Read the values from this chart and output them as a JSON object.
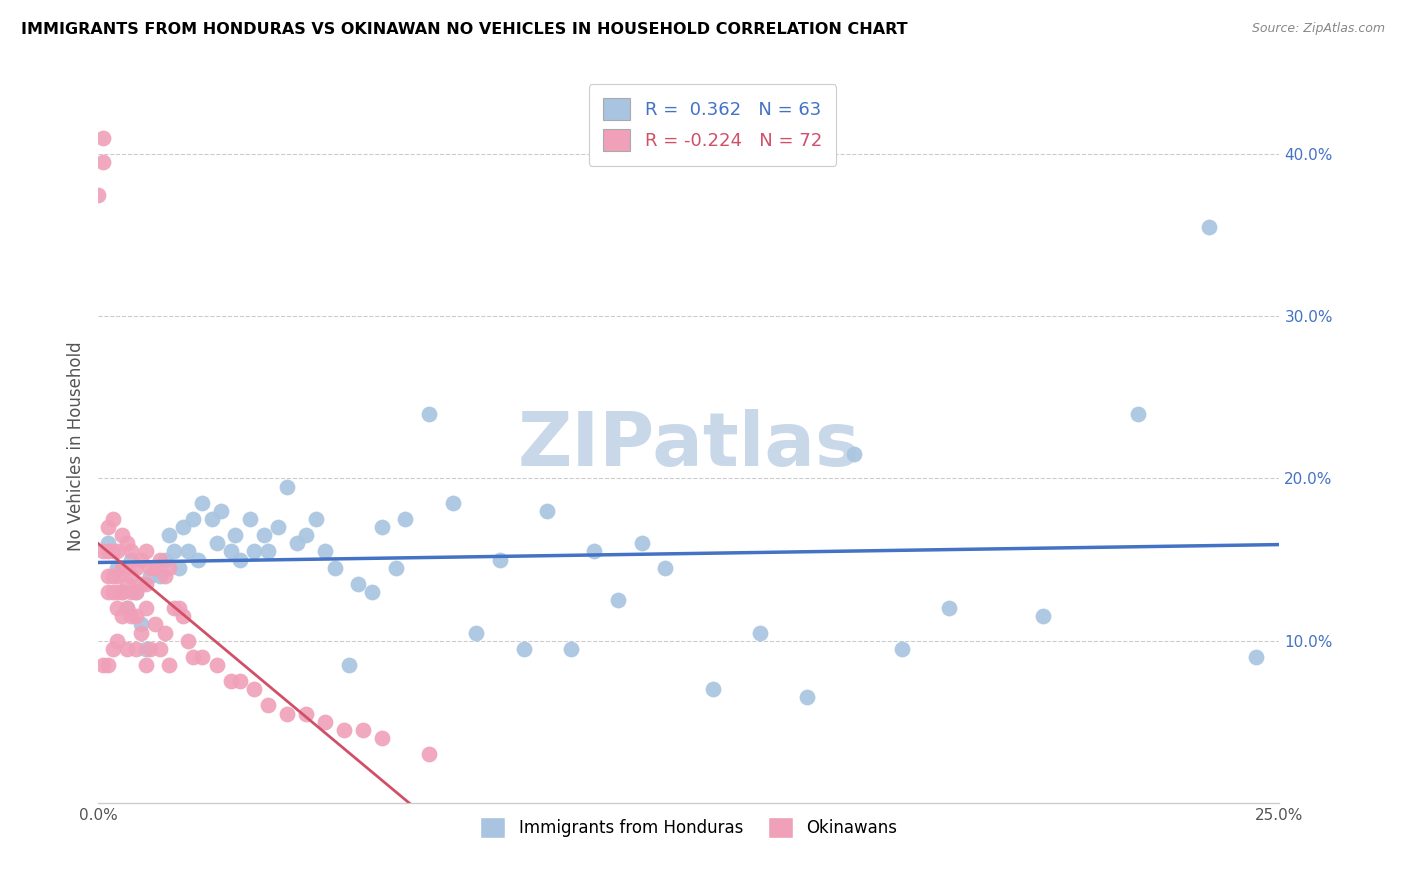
{
  "title": "IMMIGRANTS FROM HONDURAS VS OKINAWAN NO VEHICLES IN HOUSEHOLD CORRELATION CHART",
  "source": "Source: ZipAtlas.com",
  "ylabel": "No Vehicles in Household",
  "xlim": [
    0,
    0.25
  ],
  "ylim": [
    0,
    0.44
  ],
  "xtick_positions": [
    0.0,
    0.05,
    0.1,
    0.15,
    0.2,
    0.25
  ],
  "xtick_labels": [
    "0.0%",
    "",
    "",
    "",
    "",
    "25.0%"
  ],
  "yticks_right": [
    0.1,
    0.2,
    0.3,
    0.4
  ],
  "ytick_labels_right": [
    "10.0%",
    "20.0%",
    "30.0%",
    "40.0%"
  ],
  "blue_R": "0.362",
  "blue_N": "63",
  "pink_R": "-0.224",
  "pink_N": "72",
  "blue_color": "#a8c4e0",
  "pink_color": "#f0a0b8",
  "blue_line_color": "#4472C4",
  "pink_line_color": "#d05068",
  "watermark": "ZIPatlas",
  "watermark_color": "#c8d8e8",
  "blue_scatter_x": [
    0.002,
    0.004,
    0.005,
    0.006,
    0.007,
    0.008,
    0.009,
    0.01,
    0.011,
    0.013,
    0.014,
    0.015,
    0.016,
    0.017,
    0.018,
    0.019,
    0.02,
    0.021,
    0.022,
    0.024,
    0.025,
    0.026,
    0.028,
    0.029,
    0.03,
    0.032,
    0.033,
    0.035,
    0.036,
    0.038,
    0.04,
    0.042,
    0.044,
    0.046,
    0.048,
    0.05,
    0.053,
    0.055,
    0.058,
    0.06,
    0.063,
    0.065,
    0.07,
    0.075,
    0.08,
    0.085,
    0.09,
    0.095,
    0.1,
    0.105,
    0.11,
    0.115,
    0.12,
    0.13,
    0.14,
    0.15,
    0.16,
    0.17,
    0.18,
    0.2,
    0.22,
    0.235,
    0.245
  ],
  "blue_scatter_y": [
    0.16,
    0.145,
    0.13,
    0.12,
    0.15,
    0.13,
    0.11,
    0.095,
    0.14,
    0.14,
    0.15,
    0.165,
    0.155,
    0.145,
    0.17,
    0.155,
    0.175,
    0.15,
    0.185,
    0.175,
    0.16,
    0.18,
    0.155,
    0.165,
    0.15,
    0.175,
    0.155,
    0.165,
    0.155,
    0.17,
    0.195,
    0.16,
    0.165,
    0.175,
    0.155,
    0.145,
    0.085,
    0.135,
    0.13,
    0.17,
    0.145,
    0.175,
    0.24,
    0.185,
    0.105,
    0.15,
    0.095,
    0.18,
    0.095,
    0.155,
    0.125,
    0.16,
    0.145,
    0.07,
    0.105,
    0.065,
    0.215,
    0.095,
    0.12,
    0.115,
    0.24,
    0.355,
    0.09
  ],
  "pink_scatter_x": [
    0.0,
    0.001,
    0.001,
    0.001,
    0.001,
    0.002,
    0.002,
    0.002,
    0.002,
    0.002,
    0.003,
    0.003,
    0.003,
    0.003,
    0.003,
    0.004,
    0.004,
    0.004,
    0.004,
    0.004,
    0.005,
    0.005,
    0.005,
    0.005,
    0.006,
    0.006,
    0.006,
    0.006,
    0.006,
    0.007,
    0.007,
    0.007,
    0.007,
    0.008,
    0.008,
    0.008,
    0.008,
    0.009,
    0.009,
    0.009,
    0.01,
    0.01,
    0.01,
    0.01,
    0.011,
    0.011,
    0.012,
    0.012,
    0.013,
    0.013,
    0.014,
    0.014,
    0.015,
    0.015,
    0.016,
    0.017,
    0.018,
    0.019,
    0.02,
    0.022,
    0.025,
    0.028,
    0.03,
    0.033,
    0.036,
    0.04,
    0.044,
    0.048,
    0.052,
    0.056,
    0.06,
    0.07
  ],
  "pink_scatter_y": [
    0.375,
    0.395,
    0.41,
    0.155,
    0.085,
    0.17,
    0.155,
    0.14,
    0.13,
    0.085,
    0.175,
    0.155,
    0.14,
    0.13,
    0.095,
    0.155,
    0.14,
    0.13,
    0.12,
    0.1,
    0.165,
    0.145,
    0.13,
    0.115,
    0.16,
    0.145,
    0.135,
    0.12,
    0.095,
    0.155,
    0.14,
    0.13,
    0.115,
    0.145,
    0.13,
    0.115,
    0.095,
    0.15,
    0.135,
    0.105,
    0.155,
    0.135,
    0.12,
    0.085,
    0.145,
    0.095,
    0.145,
    0.11,
    0.15,
    0.095,
    0.14,
    0.105,
    0.145,
    0.085,
    0.12,
    0.12,
    0.115,
    0.1,
    0.09,
    0.09,
    0.085,
    0.075,
    0.075,
    0.07,
    0.06,
    0.055,
    0.055,
    0.05,
    0.045,
    0.045,
    0.04,
    0.03
  ]
}
